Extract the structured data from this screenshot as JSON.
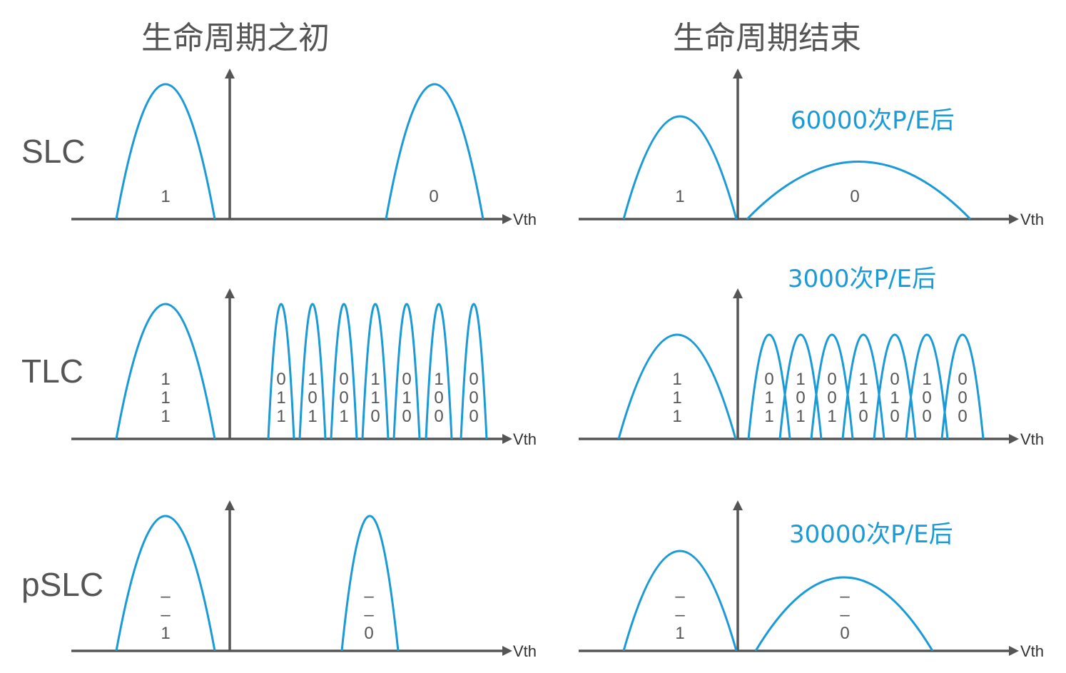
{
  "titles": {
    "left": "生命周期之初",
    "right": "生命周期结束"
  },
  "rows": [
    {
      "label": "SLC",
      "note": "60000次P/E后",
      "axis_label": "Vth",
      "left_states": [
        "1",
        "0"
      ],
      "right_states": [
        "1",
        "0"
      ]
    },
    {
      "label": "TLC",
      "note": "3000次P/E后",
      "axis_label": "Vth",
      "left_states": [
        "111",
        "011",
        "101",
        "001",
        "110",
        "010",
        "100",
        "000"
      ],
      "right_states": [
        "111",
        "011",
        "101",
        "001",
        "110",
        "010",
        "100",
        "000"
      ]
    },
    {
      "label": "pSLC",
      "note": "30000次P/E后",
      "axis_label": "Vth",
      "left_states": [
        "––1",
        "––0"
      ],
      "right_states": [
        "––1",
        "––0"
      ]
    }
  ],
  "colors": {
    "curve": "#1a9ad6",
    "axis": "#555555",
    "note": "#1a9ad6",
    "text": "#555555"
  }
}
